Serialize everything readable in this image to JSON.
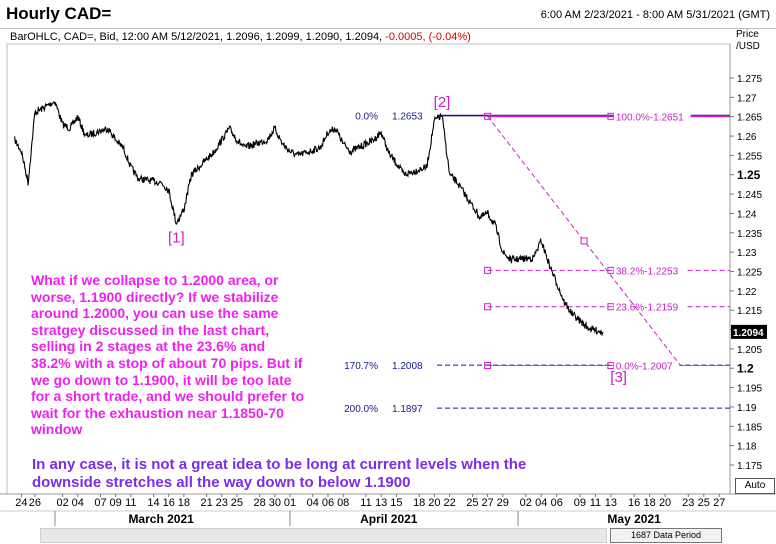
{
  "header": {
    "title": "Hourly CAD=",
    "range": "6:00 AM 2/23/2021 - 8:00 AM 5/31/2021 (GMT)",
    "ohlc_text": "BarOHLC, CAD=, Bid, 12:00 AM 5/12/2021, 1.2096, 1.2099, 1.2090, 1.2094, ",
    "change_text": "-0.0005, (-0.04%)",
    "price_label": "Price",
    "unit_label": "/USD"
  },
  "annotation_text": "What if we collapse to 1.2000 area, or worse, 1.1900 directly? If we stabilize around 1.2000, you can use the same stratgey discussed in the last chart, selling in 2 stages at the 23.6% and 38.2% with a stop of about 70 pips. But if we go down to 1.1900, it will be too late for a short trade, and we should prefer to wait for the exhaustion near 1.1850-70 window",
  "footer_text": "In any case, it is not a great idea to be long at current levels when the downside stretches all the way down to below 1.1900",
  "controls": {
    "auto_label": "Auto",
    "data_period_label": "1687 Data Period"
  },
  "colors": {
    "price": "#000000",
    "fib": "#cc22cc",
    "extension": "#1a1a8c",
    "annotation": "#ee22ee",
    "footer": "#7a2ee6"
  },
  "chart_data": {
    "type": "line",
    "series": [
      {
        "values": [
          {
            "x": "2021-02-23",
            "y": 1.259
          },
          {
            "x": "2021-02-24",
            "y": 1.256
          },
          {
            "x": "2021-02-25",
            "y": 1.248
          },
          {
            "x": "2021-02-26",
            "y": 1.266
          },
          {
            "x": "2021-03-01",
            "y": 1.269
          },
          {
            "x": "2021-03-02",
            "y": 1.263
          },
          {
            "x": "2021-03-03",
            "y": 1.262
          },
          {
            "x": "2021-03-04",
            "y": 1.265
          },
          {
            "x": "2021-03-05",
            "y": 1.26
          },
          {
            "x": "2021-03-08",
            "y": 1.262
          },
          {
            "x": "2021-03-09",
            "y": 1.259
          },
          {
            "x": "2021-03-10",
            "y": 1.257
          },
          {
            "x": "2021-03-11",
            "y": 1.252
          },
          {
            "x": "2021-03-12",
            "y": 1.249
          },
          {
            "x": "2021-03-15",
            "y": 1.248
          },
          {
            "x": "2021-03-16",
            "y": 1.246
          },
          {
            "x": "2021-03-17",
            "y": 1.2375
          },
          {
            "x": "2021-03-18",
            "y": 1.241
          },
          {
            "x": "2021-03-19",
            "y": 1.25
          },
          {
            "x": "2021-03-22",
            "y": 1.256
          },
          {
            "x": "2021-03-23",
            "y": 1.259
          },
          {
            "x": "2021-03-24",
            "y": 1.262
          },
          {
            "x": "2021-03-25",
            "y": 1.259
          },
          {
            "x": "2021-03-26",
            "y": 1.257
          },
          {
            "x": "2021-03-29",
            "y": 1.259
          },
          {
            "x": "2021-03-30",
            "y": 1.262
          },
          {
            "x": "2021-03-31",
            "y": 1.258
          },
          {
            "x": "2021-04-01",
            "y": 1.256
          },
          {
            "x": "2021-04-02",
            "y": 1.255
          },
          {
            "x": "2021-04-05",
            "y": 1.257
          },
          {
            "x": "2021-04-06",
            "y": 1.261
          },
          {
            "x": "2021-04-07",
            "y": 1.262
          },
          {
            "x": "2021-04-08",
            "y": 1.258
          },
          {
            "x": "2021-04-09",
            "y": 1.256
          },
          {
            "x": "2021-04-12",
            "y": 1.259
          },
          {
            "x": "2021-04-13",
            "y": 1.261
          },
          {
            "x": "2021-04-14",
            "y": 1.2555
          },
          {
            "x": "2021-04-15",
            "y": 1.253
          },
          {
            "x": "2021-04-16",
            "y": 1.25
          },
          {
            "x": "2021-04-19",
            "y": 1.252
          },
          {
            "x": "2021-04-20",
            "y": 1.264
          },
          {
            "x": "2021-04-21",
            "y": 1.2653
          },
          {
            "x": "2021-04-22",
            "y": 1.25
          },
          {
            "x": "2021-04-23",
            "y": 1.248
          },
          {
            "x": "2021-04-26",
            "y": 1.239
          },
          {
            "x": "2021-04-27",
            "y": 1.24
          },
          {
            "x": "2021-04-28",
            "y": 1.237
          },
          {
            "x": "2021-04-29",
            "y": 1.23
          },
          {
            "x": "2021-04-30",
            "y": 1.228
          },
          {
            "x": "2021-05-03",
            "y": 1.2285
          },
          {
            "x": "2021-05-04",
            "y": 1.233
          },
          {
            "x": "2021-05-05",
            "y": 1.227
          },
          {
            "x": "2021-05-06",
            "y": 1.222
          },
          {
            "x": "2021-05-07",
            "y": 1.217
          },
          {
            "x": "2021-05-08",
            "y": 1.214
          },
          {
            "x": "2021-05-10",
            "y": 1.2105
          },
          {
            "x": "2021-05-11",
            "y": 1.2098
          },
          {
            "x": "2021-05-12",
            "y": 1.2094
          }
        ]
      }
    ],
    "ylim": [
      1.175,
      1.28
    ],
    "y_ticks": [
      1.175,
      1.18,
      1.185,
      1.19,
      1.195,
      1.2,
      1.205,
      1.21,
      1.215,
      1.22,
      1.225,
      1.23,
      1.235,
      1.24,
      1.245,
      1.25,
      1.255,
      1.26,
      1.265,
      1.27,
      1.275
    ],
    "y_tick_labels": [
      "1.175",
      "1.18",
      "1.185",
      "1.19",
      "1.195",
      "1.2",
      "1.205",
      "1.21",
      "1.215",
      "1.22",
      "1.225",
      "1.23",
      "1.235",
      "1.24",
      "1.245",
      "1.25",
      "1.255",
      "1.26",
      "1.265",
      "1.27",
      "1.275"
    ],
    "bold_y_ticks": [
      "1.25",
      "1.2"
    ],
    "last_price_label": "1.2094",
    "last_price": 1.2094,
    "x_ticks": [
      {
        "date": "2021-02-24",
        "label": "24"
      },
      {
        "date": "2021-02-26",
        "label": "26"
      },
      {
        "date": "2021-03-02",
        "label": "02"
      },
      {
        "date": "2021-03-04",
        "label": "04"
      },
      {
        "date": "2021-03-07",
        "label": "07"
      },
      {
        "date": "2021-03-09",
        "label": "09"
      },
      {
        "date": "2021-03-11",
        "label": "11"
      },
      {
        "date": "2021-03-14",
        "label": "14"
      },
      {
        "date": "2021-03-16",
        "label": "16"
      },
      {
        "date": "2021-03-18",
        "label": "18"
      },
      {
        "date": "2021-03-21",
        "label": "21"
      },
      {
        "date": "2021-03-23",
        "label": "23"
      },
      {
        "date": "2021-03-25",
        "label": "25"
      },
      {
        "date": "2021-03-28",
        "label": "28"
      },
      {
        "date": "2021-03-30",
        "label": "30"
      },
      {
        "date": "2021-04-01",
        "label": "01"
      },
      {
        "date": "2021-04-04",
        "label": "04"
      },
      {
        "date": "2021-04-06",
        "label": "06"
      },
      {
        "date": "2021-04-08",
        "label": "08"
      },
      {
        "date": "2021-04-11",
        "label": "11"
      },
      {
        "date": "2021-04-13",
        "label": "13"
      },
      {
        "date": "2021-04-15",
        "label": "15"
      },
      {
        "date": "2021-04-18",
        "label": "18"
      },
      {
        "date": "2021-04-20",
        "label": "20"
      },
      {
        "date": "2021-04-22",
        "label": "22"
      },
      {
        "date": "2021-04-25",
        "label": "25"
      },
      {
        "date": "2021-04-27",
        "label": "27"
      },
      {
        "date": "2021-04-29",
        "label": "29"
      },
      {
        "date": "2021-05-02",
        "label": "02"
      },
      {
        "date": "2021-05-04",
        "label": "04"
      },
      {
        "date": "2021-05-06",
        "label": "06"
      },
      {
        "date": "2021-05-09",
        "label": "09"
      },
      {
        "date": "2021-05-11",
        "label": "11"
      },
      {
        "date": "2021-05-13",
        "label": "13"
      },
      {
        "date": "2021-05-16",
        "label": "16"
      },
      {
        "date": "2021-05-18",
        "label": "18"
      },
      {
        "date": "2021-05-20",
        "label": "20"
      },
      {
        "date": "2021-05-23",
        "label": "23"
      },
      {
        "date": "2021-05-25",
        "label": "25"
      },
      {
        "date": "2021-05-27",
        "label": "27"
      }
    ],
    "months": [
      {
        "date": "2021-03-15",
        "label": "March 2021"
      },
      {
        "date": "2021-04-14",
        "label": "April 2021"
      },
      {
        "date": "2021-05-16",
        "label": "May 2021"
      }
    ],
    "month_separators": [
      "2021-03-01",
      "2021-04-01",
      "2021-05-01"
    ],
    "wave_labels": [
      {
        "label": "[1]",
        "x": "2021-03-17",
        "y": 1.2325
      },
      {
        "label": "[2]",
        "x": "2021-04-21",
        "y": 1.2675
      },
      {
        "label": "[3]",
        "x": "2021-05-14",
        "y": 1.1965
      }
    ],
    "fib_retracement": {
      "start_date": "2021-04-27",
      "end_date": "2021-05-13",
      "levels": [
        {
          "label": "100.0%-1.2651",
          "price": 1.2651
        },
        {
          "label": "38.2%-1.2253",
          "price": 1.2253
        },
        {
          "label": "23.6%-1.2159",
          "price": 1.2159
        },
        {
          "label": "0.0%-1.2007",
          "price": 1.2007
        }
      ],
      "diagonal": [
        {
          "x": "2021-04-27",
          "y": 1.2651
        },
        {
          "x": "2021-05-22",
          "y": 1.2007
        }
      ]
    },
    "fib_extension": [
      {
        "pct": "0.0%",
        "price": 1.2653,
        "price_label": "1.2653",
        "start_date": "2021-04-21"
      },
      {
        "pct": "170.7%",
        "price": 1.2008,
        "price_label": "1.2008",
        "start_date": "2021-04-21"
      },
      {
        "pct": "200.0%",
        "price": 1.1897,
        "price_label": "1.1897",
        "start_date": "2021-04-21"
      }
    ]
  }
}
